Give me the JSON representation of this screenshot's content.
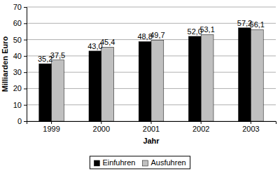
{
  "chart_data": {
    "type": "bar",
    "x_label": "Jahr",
    "y_label": "Milliarden Euro",
    "categories": [
      "1999",
      "2000",
      "2001",
      "2002",
      "2003"
    ],
    "series": [
      {
        "name": "Einfuhren",
        "color": "#000000",
        "values": [
          35.2,
          43.0,
          48.8,
          52.0,
          57.2
        ],
        "value_labels": [
          "35,2",
          "43,0",
          "48,8",
          "52,0",
          "57,2"
        ]
      },
      {
        "name": "Ausfuhren",
        "color": "#c0c0c0",
        "values": [
          37.5,
          45.4,
          49.7,
          53.1,
          56.1
        ],
        "value_labels": [
          "37,5",
          "45,4",
          "49,7",
          "53,1",
          "56,1"
        ]
      }
    ],
    "ylim": [
      0,
      70
    ],
    "yticks": [
      0,
      10,
      20,
      30,
      40,
      50,
      60,
      70
    ],
    "grid": true,
    "legend": "bottom",
    "data_labels": true
  }
}
